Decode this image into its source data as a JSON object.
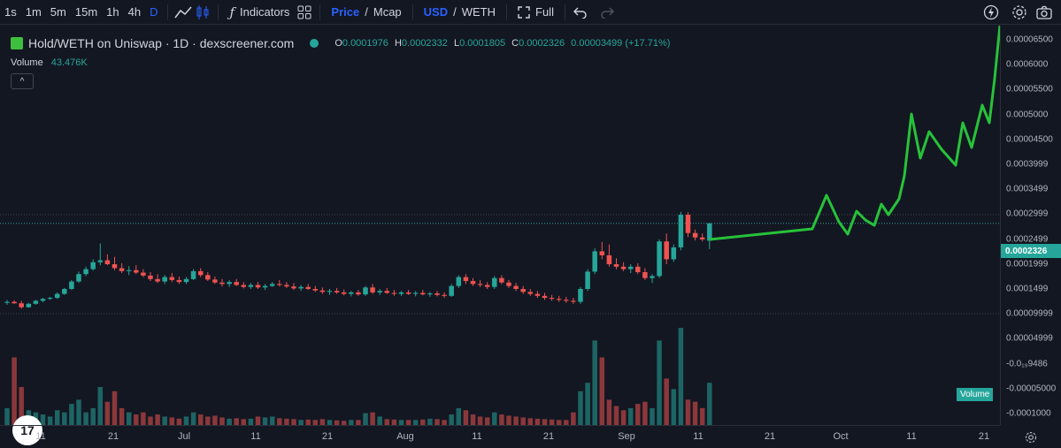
{
  "toolbar": {
    "timeframes": [
      "1s",
      "1m",
      "5m",
      "15m",
      "1h",
      "4h",
      "D"
    ],
    "active_timeframe": "D",
    "indicators_label": "Indicators",
    "price_label": "Price",
    "mcap_label": "Mcap",
    "usd_label": "USD",
    "weth_label": "WETH",
    "full_label": "Full",
    "separator": "/"
  },
  "legend": {
    "title": "Hold/WETH on Uniswap · 1D · dexscreener.com",
    "o_key": "O",
    "o_val": "0.0001976",
    "h_key": "H",
    "h_val": "0.0002332",
    "l_key": "L",
    "l_val": "0.0001805",
    "c_key": "C",
    "c_val": "0.0002326",
    "change": "0.00003499 (+17.71%)",
    "volume_label": "Volume",
    "volume_value": "43.476K",
    "collapse_glyph": "^"
  },
  "logo": {
    "text": "17"
  },
  "colors": {
    "up": "#26a69a",
    "down": "#ef5350",
    "drawing": "#27c23a",
    "background": "#131722"
  },
  "price_axis": {
    "labels": [
      "0.00006500",
      "0.0006000",
      "0.00005500",
      "0.0005000",
      "0.00004500",
      "0.0003999",
      "0.0003499",
      "0.0002999",
      "0.0002499",
      "0.0001999",
      "0.0001499",
      "0.00009999",
      "0.00004999",
      "-0.0₁₉9486",
      "-0.00005000",
      "-0.0001000"
    ],
    "current_price": "0.0002326",
    "volume_tag": "Volume"
  },
  "time_axis": {
    "labels": [
      "11",
      "21",
      "Jul",
      "11",
      "21",
      "Aug",
      "11",
      "21",
      "Sep",
      "11",
      "21",
      "Oct",
      "11",
      "21",
      "21"
    ]
  },
  "chart_data": {
    "type": "candlestick",
    "interval": "1D",
    "note": "prices in WETH; approximate OHLC read from pixels",
    "candles": [
      {
        "o": 7.2e-05,
        "h": 7.8e-05,
        "l": 6.8e-05,
        "c": 7.4e-05,
        "v": 40
      },
      {
        "o": 7.4e-05,
        "h": 7.7e-05,
        "l": 7e-05,
        "c": 7.1e-05,
        "v": 160
      },
      {
        "o": 7.1e-05,
        "h": 7.6e-05,
        "l": 6e-05,
        "c": 6.3e-05,
        "v": 90
      },
      {
        "o": 6.3e-05,
        "h": 7.2e-05,
        "l": 6.2e-05,
        "c": 7e-05,
        "v": 35
      },
      {
        "o": 7e-05,
        "h": 7.8e-05,
        "l": 6.8e-05,
        "c": 7.6e-05,
        "v": 30
      },
      {
        "o": 7.6e-05,
        "h": 8.2e-05,
        "l": 7.3e-05,
        "c": 8e-05,
        "v": 25
      },
      {
        "o": 8e-05,
        "h": 8.4e-05,
        "l": 7.8e-05,
        "c": 8.2e-05,
        "v": 20
      },
      {
        "o": 8.2e-05,
        "h": 9.3e-05,
        "l": 8e-05,
        "c": 9e-05,
        "v": 35
      },
      {
        "o": 9e-05,
        "h": 0.000102,
        "l": 8.8e-05,
        "c": 0.0001,
        "v": 30
      },
      {
        "o": 0.0001,
        "h": 0.000118,
        "l": 9.8e-05,
        "c": 0.000115,
        "v": 50
      },
      {
        "o": 0.000115,
        "h": 0.000135,
        "l": 0.000112,
        "c": 0.00013,
        "v": 60
      },
      {
        "o": 0.00013,
        "h": 0.000145,
        "l": 0.000126,
        "c": 0.00014,
        "v": 30
      },
      {
        "o": 0.00014,
        "h": 0.00016,
        "l": 0.000137,
        "c": 0.000154,
        "v": 40
      },
      {
        "o": 0.000154,
        "h": 0.000192,
        "l": 0.000148,
        "c": 0.000158,
        "v": 90
      },
      {
        "o": 0.000158,
        "h": 0.00017,
        "l": 0.000148,
        "c": 0.00015,
        "v": 55
      },
      {
        "o": 0.00015,
        "h": 0.000165,
        "l": 0.000138,
        "c": 0.000142,
        "v": 80
      },
      {
        "o": 0.000142,
        "h": 0.000152,
        "l": 0.000132,
        "c": 0.000136,
        "v": 40
      },
      {
        "o": 0.000136,
        "h": 0.000146,
        "l": 0.000128,
        "c": 0.000138,
        "v": 30
      },
      {
        "o": 0.000138,
        "h": 0.000148,
        "l": 0.00013,
        "c": 0.000133,
        "v": 25
      },
      {
        "o": 0.000133,
        "h": 0.00014,
        "l": 0.000124,
        "c": 0.000127,
        "v": 30
      },
      {
        "o": 0.000127,
        "h": 0.000134,
        "l": 0.000116,
        "c": 0.00012,
        "v": 20
      },
      {
        "o": 0.00012,
        "h": 0.00013,
        "l": 0.000112,
        "c": 0.000115,
        "v": 25
      },
      {
        "o": 0.000115,
        "h": 0.000128,
        "l": 0.00011,
        "c": 0.000124,
        "v": 20
      },
      {
        "o": 0.000124,
        "h": 0.000132,
        "l": 0.000114,
        "c": 0.000118,
        "v": 18
      },
      {
        "o": 0.000118,
        "h": 0.000125,
        "l": 0.00011,
        "c": 0.000114,
        "v": 15
      },
      {
        "o": 0.000114,
        "h": 0.000124,
        "l": 0.00011,
        "c": 0.00012,
        "v": 20
      },
      {
        "o": 0.00012,
        "h": 0.00014,
        "l": 0.000118,
        "c": 0.000136,
        "v": 30
      },
      {
        "o": 0.000136,
        "h": 0.000142,
        "l": 0.000124,
        "c": 0.000128,
        "v": 25
      },
      {
        "o": 0.000128,
        "h": 0.000134,
        "l": 0.000116,
        "c": 0.000119,
        "v": 20
      },
      {
        "o": 0.000119,
        "h": 0.000125,
        "l": 0.00011,
        "c": 0.000113,
        "v": 22
      },
      {
        "o": 0.000113,
        "h": 0.00012,
        "l": 0.000105,
        "c": 0.00011,
        "v": 18
      },
      {
        "o": 0.00011,
        "h": 0.000118,
        "l": 0.000104,
        "c": 0.000114,
        "v": 15
      },
      {
        "o": 0.000114,
        "h": 0.00012,
        "l": 0.000106,
        "c": 0.000108,
        "v": 16
      },
      {
        "o": 0.000108,
        "h": 0.000114,
        "l": 0.000101,
        "c": 0.000104,
        "v": 14
      },
      {
        "o": 0.000104,
        "h": 0.000112,
        "l": 0.0001,
        "c": 0.000108,
        "v": 15
      },
      {
        "o": 0.000108,
        "h": 0.000114,
        "l": 0.0001,
        "c": 0.000103,
        "v": 20
      },
      {
        "o": 0.000103,
        "h": 0.00011,
        "l": 9.8e-05,
        "c": 0.000106,
        "v": 18
      },
      {
        "o": 0.000106,
        "h": 0.000114,
        "l": 0.000104,
        "c": 0.00011,
        "v": 20
      },
      {
        "o": 0.00011,
        "h": 0.000118,
        "l": 0.000105,
        "c": 0.000108,
        "v": 16
      },
      {
        "o": 0.000108,
        "h": 0.000114,
        "l": 0.000102,
        "c": 0.000105,
        "v": 15
      },
      {
        "o": 0.000105,
        "h": 0.000112,
        "l": 9.8e-05,
        "c": 0.000101,
        "v": 14
      },
      {
        "o": 0.000101,
        "h": 0.000108,
        "l": 9.6e-05,
        "c": 0.000104,
        "v": 12
      },
      {
        "o": 0.000104,
        "h": 0.00011,
        "l": 9.8e-05,
        "c": 0.0001,
        "v": 13
      },
      {
        "o": 0.0001,
        "h": 0.000106,
        "l": 9.4e-05,
        "c": 9.7e-05,
        "v": 12
      },
      {
        "o": 9.7e-05,
        "h": 0.000103,
        "l": 9e-05,
        "c": 9.4e-05,
        "v": 14
      },
      {
        "o": 9.4e-05,
        "h": 0.0001,
        "l": 8.8e-05,
        "c": 9.6e-05,
        "v": 12
      },
      {
        "o": 9.6e-05,
        "h": 0.000102,
        "l": 9e-05,
        "c": 9.3e-05,
        "v": 11
      },
      {
        "o": 9.3e-05,
        "h": 9.9e-05,
        "l": 8.7e-05,
        "c": 9e-05,
        "v": 10
      },
      {
        "o": 9e-05,
        "h": 9.6e-05,
        "l": 8.5e-05,
        "c": 9.3e-05,
        "v": 12
      },
      {
        "o": 9.3e-05,
        "h": 9.8e-05,
        "l": 8.6e-05,
        "c": 8.9e-05,
        "v": 12
      },
      {
        "o": 8.9e-05,
        "h": 0.000106,
        "l": 8.6e-05,
        "c": 0.000103,
        "v": 28
      },
      {
        "o": 0.000103,
        "h": 0.00011,
        "l": 9e-05,
        "c": 9.3e-05,
        "v": 30
      },
      {
        "o": 9.3e-05,
        "h": 0.0001,
        "l": 8.8e-05,
        "c": 9.6e-05,
        "v": 20
      },
      {
        "o": 9.6e-05,
        "h": 0.000102,
        "l": 9e-05,
        "c": 9.2e-05,
        "v": 14
      },
      {
        "o": 9.2e-05,
        "h": 9.8e-05,
        "l": 8.6e-05,
        "c": 9e-05,
        "v": 13
      },
      {
        "o": 9e-05,
        "h": 9.6e-05,
        "l": 8.6e-05,
        "c": 9.3e-05,
        "v": 12
      },
      {
        "o": 9.3e-05,
        "h": 9.8e-05,
        "l": 8.8e-05,
        "c": 9e-05,
        "v": 12
      },
      {
        "o": 9e-05,
        "h": 9.6e-05,
        "l": 8.5e-05,
        "c": 9.2e-05,
        "v": 12
      },
      {
        "o": 9.2e-05,
        "h": 9.8e-05,
        "l": 8.7e-05,
        "c": 8.9e-05,
        "v": 13
      },
      {
        "o": 8.9e-05,
        "h": 9.4e-05,
        "l": 8.4e-05,
        "c": 9.1e-05,
        "v": 15
      },
      {
        "o": 9.1e-05,
        "h": 9.6e-05,
        "l": 8.5e-05,
        "c": 8.8e-05,
        "v": 14
      },
      {
        "o": 8.8e-05,
        "h": 9.3e-05,
        "l": 8.2e-05,
        "c": 8.6e-05,
        "v": 12
      },
      {
        "o": 8.6e-05,
        "h": 0.00011,
        "l": 8.4e-05,
        "c": 0.000106,
        "v": 25
      },
      {
        "o": 0.000106,
        "h": 0.000128,
        "l": 0.000102,
        "c": 0.000124,
        "v": 40
      },
      {
        "o": 0.000124,
        "h": 0.00013,
        "l": 0.00011,
        "c": 0.000116,
        "v": 35
      },
      {
        "o": 0.000116,
        "h": 0.000122,
        "l": 0.000106,
        "c": 0.00011,
        "v": 25
      },
      {
        "o": 0.00011,
        "h": 0.000118,
        "l": 0.000104,
        "c": 0.000108,
        "v": 20
      },
      {
        "o": 0.000108,
        "h": 0.000114,
        "l": 0.0001,
        "c": 0.000104,
        "v": 18
      },
      {
        "o": 0.000104,
        "h": 0.000126,
        "l": 0.0001,
        "c": 0.000122,
        "v": 30
      },
      {
        "o": 0.000122,
        "h": 0.000128,
        "l": 0.00011,
        "c": 0.000113,
        "v": 25
      },
      {
        "o": 0.000113,
        "h": 0.000118,
        "l": 0.000102,
        "c": 0.000106,
        "v": 22
      },
      {
        "o": 0.000106,
        "h": 0.000112,
        "l": 9.6e-05,
        "c": 0.0001,
        "v": 20
      },
      {
        "o": 0.0001,
        "h": 0.000106,
        "l": 9e-05,
        "c": 9.4e-05,
        "v": 18
      },
      {
        "o": 9.4e-05,
        "h": 0.0001,
        "l": 8.6e-05,
        "c": 9e-05,
        "v": 16
      },
      {
        "o": 9e-05,
        "h": 9.6e-05,
        "l": 8.2e-05,
        "c": 8.6e-05,
        "v": 15
      },
      {
        "o": 8.6e-05,
        "h": 9.2e-05,
        "l": 7.8e-05,
        "c": 8.2e-05,
        "v": 14
      },
      {
        "o": 8.2e-05,
        "h": 8.8e-05,
        "l": 7.6e-05,
        "c": 8e-05,
        "v": 13
      },
      {
        "o": 8e-05,
        "h": 8.6e-05,
        "l": 7.4e-05,
        "c": 7.8e-05,
        "v": 12
      },
      {
        "o": 7.8e-05,
        "h": 8.4e-05,
        "l": 7.2e-05,
        "c": 7.6e-05,
        "v": 12
      },
      {
        "o": 7.6e-05,
        "h": 8.2e-05,
        "l": 7e-05,
        "c": 7.4e-05,
        "v": 30
      },
      {
        "o": 7.4e-05,
        "h": 0.000104,
        "l": 7e-05,
        "c": 0.0001,
        "v": 80
      },
      {
        "o": 0.0001,
        "h": 0.00014,
        "l": 9.6e-05,
        "c": 0.000135,
        "v": 100
      },
      {
        "o": 0.000135,
        "h": 0.000182,
        "l": 0.00013,
        "c": 0.000176,
        "v": 200
      },
      {
        "o": 0.000176,
        "h": 0.000195,
        "l": 0.00016,
        "c": 0.000168,
        "v": 160
      },
      {
        "o": 0.000168,
        "h": 0.00019,
        "l": 0.000145,
        "c": 0.00015,
        "v": 60
      },
      {
        "o": 0.00015,
        "h": 0.000162,
        "l": 0.00014,
        "c": 0.000145,
        "v": 45
      },
      {
        "o": 0.000145,
        "h": 0.000154,
        "l": 0.000136,
        "c": 0.00014,
        "v": 35
      },
      {
        "o": 0.00014,
        "h": 0.00015,
        "l": 0.000132,
        "c": 0.000145,
        "v": 40
      },
      {
        "o": 0.000145,
        "h": 0.000152,
        "l": 0.00013,
        "c": 0.000134,
        "v": 50
      },
      {
        "o": 0.000134,
        "h": 0.000142,
        "l": 0.000118,
        "c": 0.000122,
        "v": 55
      },
      {
        "o": 0.000122,
        "h": 0.00013,
        "l": 0.000112,
        "c": 0.000126,
        "v": 40
      },
      {
        "o": 0.000126,
        "h": 0.0002,
        "l": 0.000122,
        "c": 0.000196,
        "v": 200
      },
      {
        "o": 0.000196,
        "h": 0.000212,
        "l": 0.00015,
        "c": 0.00016,
        "v": 110
      },
      {
        "o": 0.00016,
        "h": 0.00019,
        "l": 0.000155,
        "c": 0.000184,
        "v": 85
      },
      {
        "o": 0.000184,
        "h": 0.000256,
        "l": 0.000178,
        "c": 0.00025,
        "v": 230
      },
      {
        "o": 0.00025,
        "h": 0.000255,
        "l": 0.000205,
        "c": 0.000213,
        "v": 60
      },
      {
        "o": 0.000213,
        "h": 0.00022,
        "l": 0.000198,
        "c": 0.000204,
        "v": 55
      },
      {
        "o": 0.000204,
        "h": 0.000212,
        "l": 0.000196,
        "c": 0.0002,
        "v": 40
      },
      {
        "o": 0.0001976,
        "h": 0.0002332,
        "l": 0.0001805,
        "c": 0.0002326,
        "v": 100
      }
    ],
    "projection_drawing": "hand-drawn green line continuing upward from the last candle"
  }
}
